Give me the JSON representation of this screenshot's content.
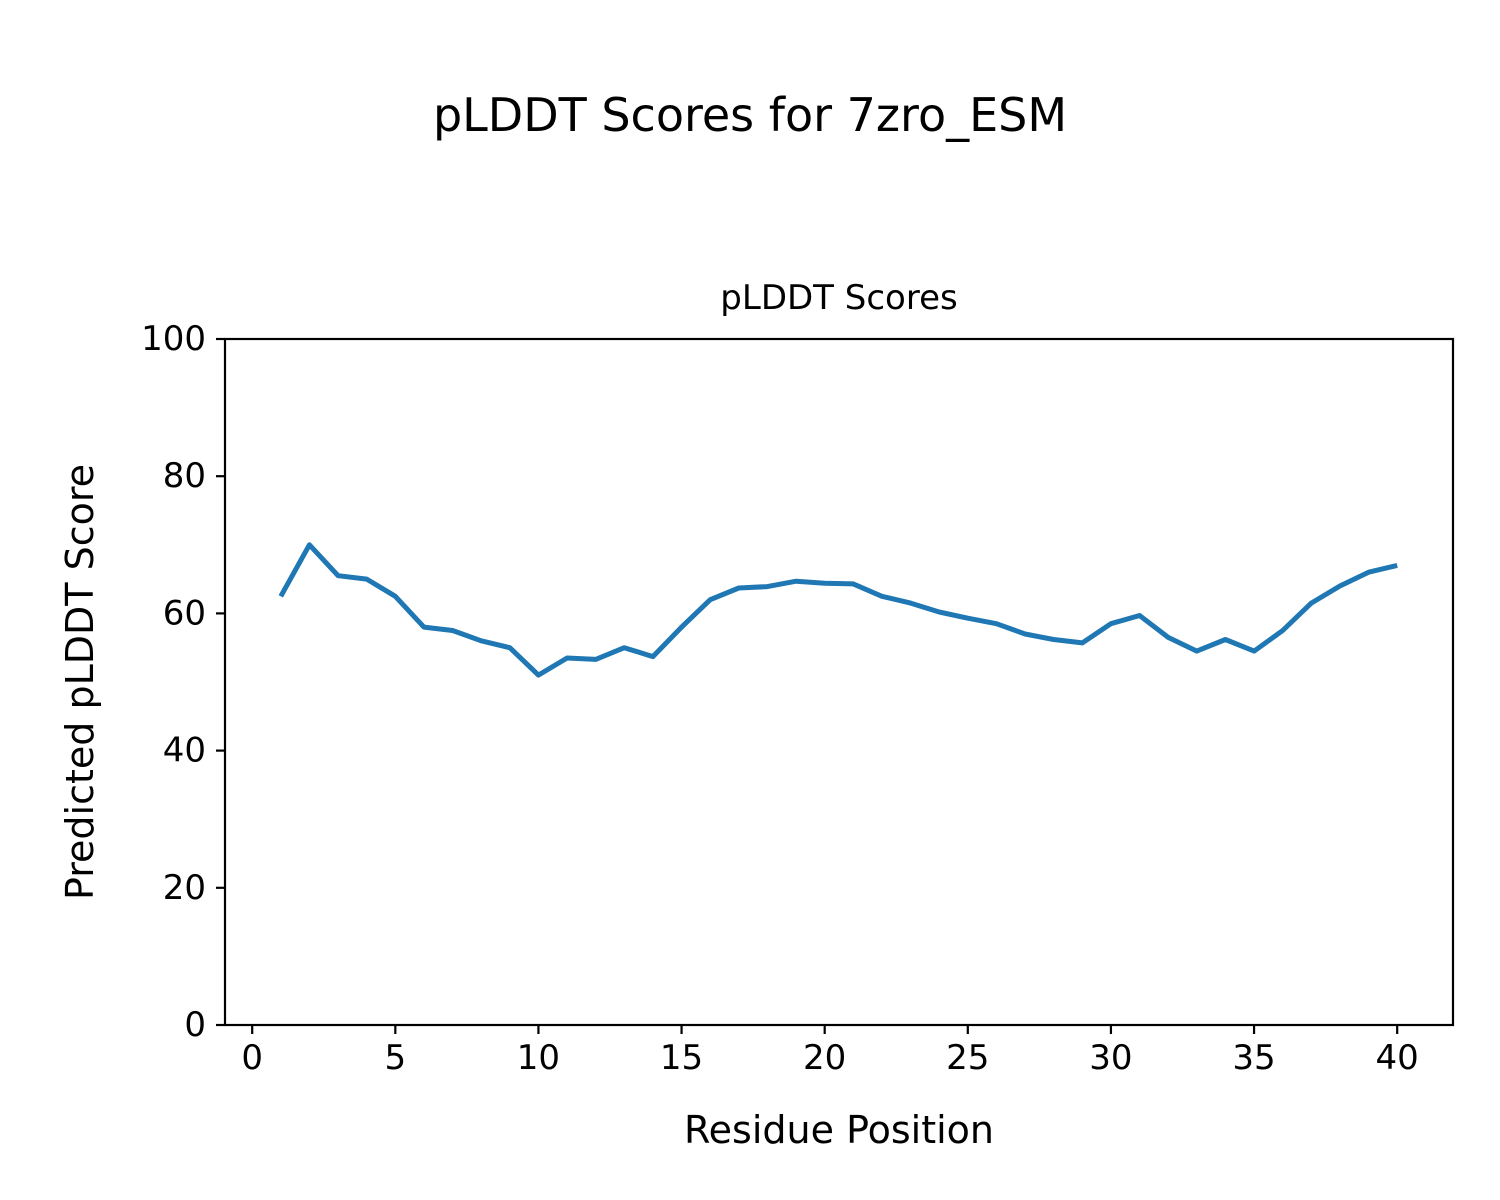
{
  "page": {
    "suptitle": "pLDDT Scores for 7zro_ESM",
    "axes_title": "pLDDT Scores",
    "xlabel": "Residue Position",
    "ylabel": "Predicted pLDDT Score"
  },
  "chart_data": {
    "type": "line",
    "title": "pLDDT Scores",
    "suptitle": "pLDDT Scores for 7zro_ESM",
    "xlabel": "Residue Position",
    "ylabel": "Predicted pLDDT Score",
    "series": [
      {
        "name": "pLDDT",
        "x": [
          1,
          2,
          3,
          4,
          5,
          6,
          7,
          8,
          9,
          10,
          11,
          12,
          13,
          14,
          15,
          16,
          17,
          18,
          19,
          20,
          21,
          22,
          23,
          24,
          25,
          26,
          27,
          28,
          29,
          30,
          31,
          32,
          33,
          34,
          35,
          36,
          37,
          38,
          39,
          40
        ],
        "y": [
          62.5,
          70,
          65.5,
          65,
          62.5,
          58,
          57.5,
          56,
          55,
          51,
          53.5,
          53.3,
          55,
          53.7,
          58,
          62,
          63.7,
          63.9,
          64.7,
          64.4,
          64.3,
          62.5,
          61.5,
          60.2,
          59.3,
          58.5,
          57,
          56.2,
          55.7,
          58.5,
          59.7,
          56.5,
          54.5,
          56.2,
          54.5,
          57.5,
          61.5,
          64,
          66,
          67
        ]
      }
    ],
    "xlim": [
      -0.95,
      41.95
    ],
    "ylim": [
      0,
      100
    ],
    "xticks": [
      0,
      5,
      10,
      15,
      20,
      25,
      30,
      35,
      40
    ],
    "yticks": [
      0,
      20,
      40,
      60,
      80,
      100
    ],
    "grid": false,
    "legend": false,
    "line_color": "#1f77b4",
    "line_width": 5,
    "axis_color": "#000000",
    "background_color": "#ffffff"
  }
}
